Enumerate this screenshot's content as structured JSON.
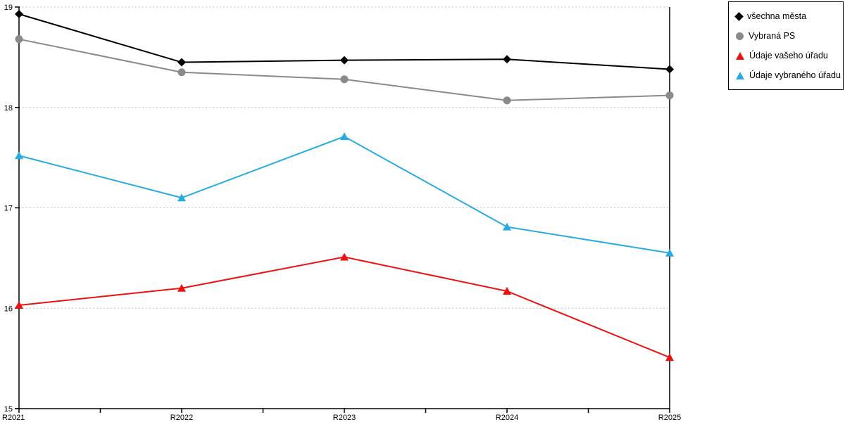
{
  "chart_data": {
    "type": "line",
    "title": "",
    "xlabel": "",
    "ylabel": "",
    "categories": [
      "R2021",
      "R2022",
      "R2023",
      "R2024",
      "R2025"
    ],
    "series": [
      {
        "name": "všechna města",
        "color": "#000000",
        "marker": "diamond",
        "values": [
          18.93,
          18.45,
          18.47,
          18.48,
          18.38
        ]
      },
      {
        "name": "Vybraná PS",
        "color": "#8a8a8a",
        "marker": "circle",
        "values": [
          18.68,
          18.35,
          18.28,
          18.07,
          18.12
        ]
      },
      {
        "name": "Údaje vašeho úřadu",
        "color": "#ee1111",
        "marker": "triangle",
        "values": [
          16.03,
          16.2,
          16.51,
          16.17,
          15.51
        ]
      },
      {
        "name": "Údaje vybraného úřadu",
        "color": "#29abe2",
        "marker": "triangle",
        "values": [
          17.52,
          17.1,
          17.71,
          16.81,
          16.55
        ]
      }
    ],
    "ylim": [
      15,
      19
    ],
    "yticks": [
      "15",
      "16",
      "17",
      "18",
      "19"
    ],
    "grid": "horizontal-dotted",
    "grid_color": "#c4c4c4",
    "axis_color": "#000000",
    "legend_position": "top-right"
  }
}
